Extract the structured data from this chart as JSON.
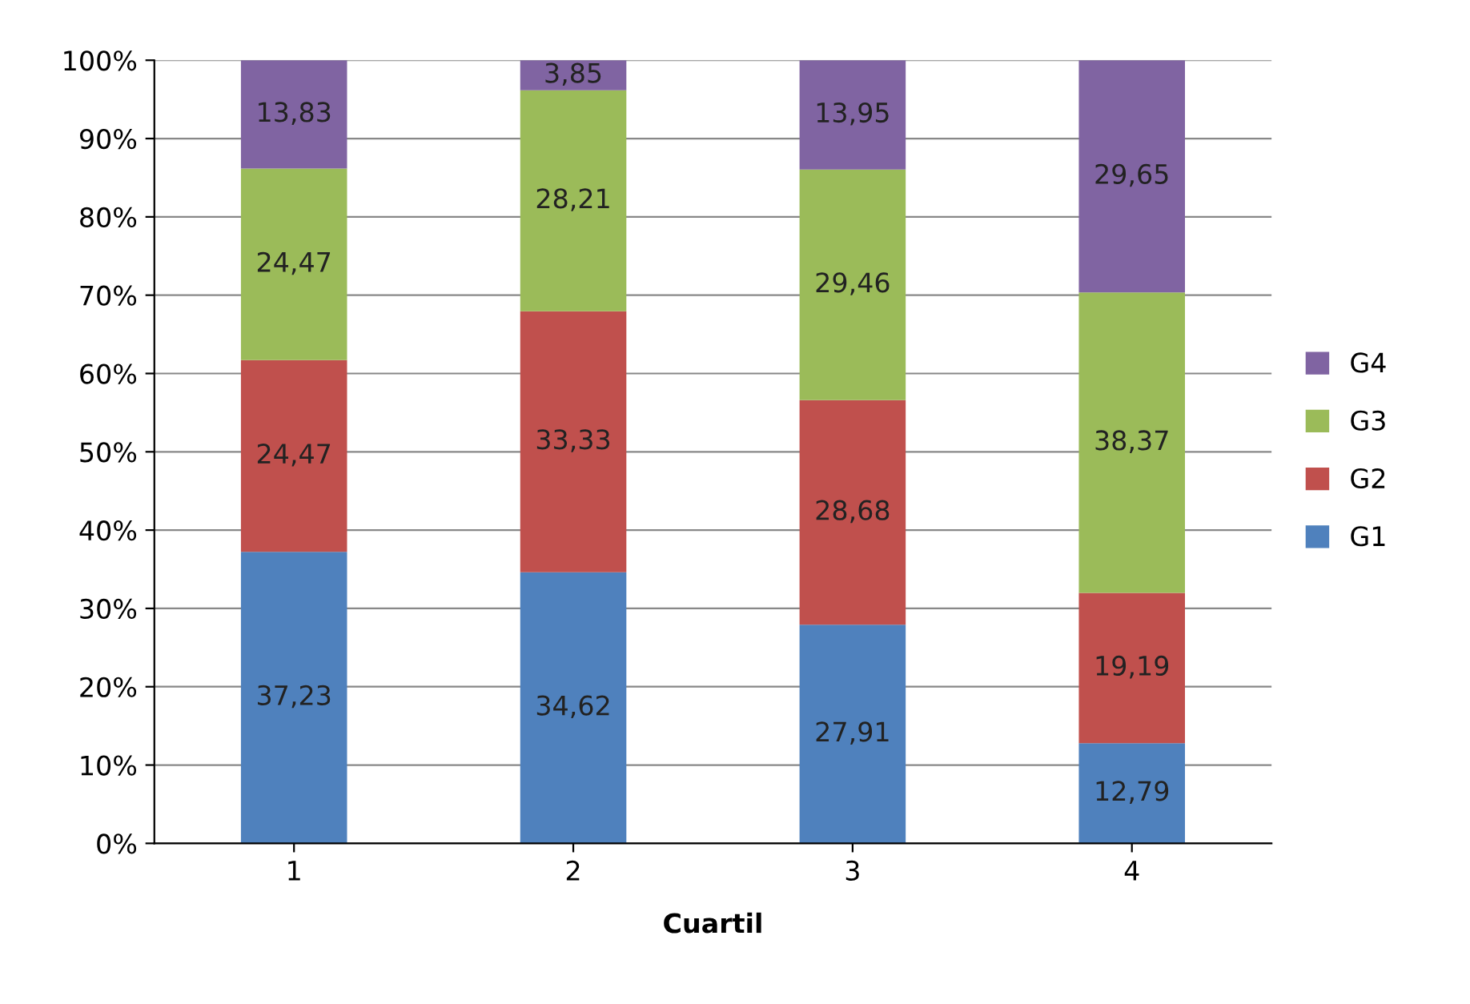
{
  "chart_data": {
    "type": "bar",
    "stacked": true,
    "xlabel": "Cuartil",
    "categories": [
      "1",
      "2",
      "3",
      "4"
    ],
    "series": [
      {
        "name": "G1",
        "color": "#4f81bd",
        "values": [
          37.23,
          34.62,
          27.91,
          12.79
        ],
        "value_labels": [
          "37,23",
          "34,62",
          "27,91",
          "12,79"
        ]
      },
      {
        "name": "G2",
        "color": "#c0504d",
        "values": [
          24.47,
          33.33,
          28.68,
          19.19
        ],
        "value_labels": [
          "24,47",
          "33,33",
          "28,68",
          "19,19"
        ]
      },
      {
        "name": "G3",
        "color": "#9bbb59",
        "values": [
          24.47,
          28.21,
          29.46,
          38.37
        ],
        "value_labels": [
          "24,47",
          "28,21",
          "29,46",
          "38,37"
        ]
      },
      {
        "name": "G4",
        "color": "#8064a2",
        "values": [
          13.83,
          3.85,
          13.95,
          29.65
        ],
        "value_labels": [
          "13,83",
          "3,85",
          "13,95",
          "29,65"
        ]
      }
    ],
    "ylim": [
      0,
      100
    ],
    "yticks": [
      {
        "value": 0,
        "label": "0%"
      },
      {
        "value": 10,
        "label": "10%"
      },
      {
        "value": 20,
        "label": "20%"
      },
      {
        "value": 30,
        "label": "30%"
      },
      {
        "value": 40,
        "label": "40%"
      },
      {
        "value": 50,
        "label": "50%"
      },
      {
        "value": 60,
        "label": "60%"
      },
      {
        "value": 70,
        "label": "70%"
      },
      {
        "value": 80,
        "label": "80%"
      },
      {
        "value": 90,
        "label": "90%"
      },
      {
        "value": 100,
        "label": "100%"
      }
    ],
    "grid": "y",
    "legend": "right"
  }
}
